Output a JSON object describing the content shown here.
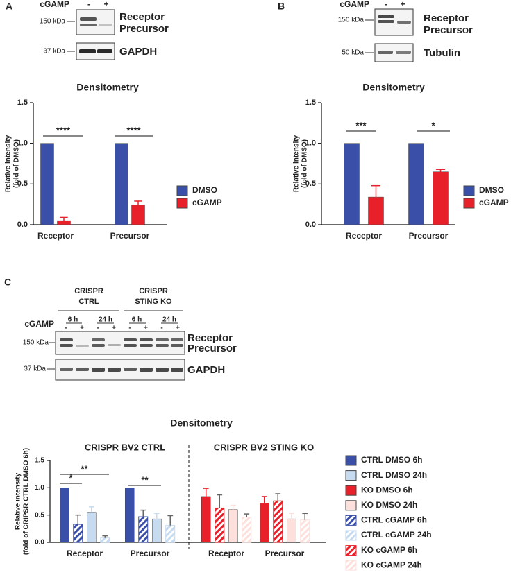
{
  "figure": {
    "panel_labels": [
      "A",
      "B",
      "C"
    ],
    "blots": [
      {
        "treatment": "cGAMP",
        "lanes": [
          "-",
          "+"
        ],
        "markers": [
          "150 kDa",
          "37 kDa"
        ],
        "bands": [
          "Receptor",
          "Precursor"
        ],
        "loading_control": "GAPDH"
      },
      {
        "treatment": "cGAMP",
        "lanes": [
          "-",
          "+"
        ],
        "markers": [
          "150 kDa",
          "50 kDa"
        ],
        "bands": [
          "Receptor",
          "Precursor"
        ],
        "loading_control": "Tubulin"
      },
      {
        "groups": [
          [
            "CRISPR",
            "CTRL"
          ],
          [
            "CRISPR",
            "STING KO"
          ]
        ],
        "times": [
          "6 h",
          "24 h",
          "6 h",
          "24 h"
        ],
        "treatment": "cGAMP",
        "lanes": [
          "-",
          "+",
          "-",
          "+",
          "-",
          "+",
          "-",
          "+"
        ],
        "markers": [
          "150 kDa",
          "37 kDa"
        ],
        "bands": [
          "Receptor",
          "Precursor"
        ],
        "loading_control": "GAPDH"
      }
    ]
  },
  "chart_data": [
    {
      "type": "bar",
      "title": "Densitometry",
      "ylabel": [
        "Relative intensity",
        "(fold of DMSO)"
      ],
      "categories": [
        "Receptor",
        "Precursor"
      ],
      "series": [
        {
          "name": "DMSO",
          "color": "#3a4fa8",
          "values": [
            1,
            1
          ]
        },
        {
          "name": "cGAMP",
          "color": "#e8202a",
          "values": [
            0.05,
            0.24
          ],
          "errors": [
            0.04,
            0.05
          ]
        }
      ],
      "ylim": [
        0,
        1.5
      ],
      "yticks": [
        {
          "value": 0,
          "label": "0.0"
        },
        0.5,
        {
          "value": 1,
          "label": "1.0"
        },
        1.5
      ],
      "annotations": [
        "****",
        "****"
      ],
      "legend": "right"
    },
    {
      "type": "bar",
      "title": "Densitometry",
      "ylabel": [
        "Relative intensity",
        "(fold of DMSO)"
      ],
      "categories": [
        "Receptor",
        "Precursor"
      ],
      "series": [
        {
          "name": "DMSO",
          "color": "#3a4fa8",
          "values": [
            1,
            1
          ]
        },
        {
          "name": "cGAMP",
          "color": "#e8202a",
          "values": [
            0.34,
            0.65
          ],
          "errors": [
            0.14,
            0.03
          ]
        }
      ],
      "ylim": [
        0,
        1.5
      ],
      "yticks": [
        {
          "value": 0,
          "label": "0.0"
        },
        0.5,
        {
          "value": 1,
          "label": "1.0"
        },
        1.5
      ],
      "annotations": [
        "***",
        "*"
      ],
      "legend": "right"
    },
    {
      "type": "bar",
      "title": "Densitometry",
      "subtitles": [
        "CRISPR BV2 CTRL",
        "CRISPR BV2 STING KO"
      ],
      "ylabel": [
        "Relative intensity",
        "(fold of CRIPSR CTRL DMSO 6h)"
      ],
      "categories": [
        "Receptor",
        "Precursor",
        "Receptor",
        "Precursor"
      ],
      "series": [
        {
          "name": "CTRL DMSO 6h",
          "color": "#3a4fa8",
          "values": [
            1,
            1,
            null,
            null
          ]
        },
        {
          "name": "CTRL DMSO 24h",
          "color": "#c6daf0",
          "values": [
            0.55,
            0.43,
            null,
            null
          ],
          "errors": [
            0.1,
            0.1,
            null,
            null
          ]
        },
        {
          "name": "KO DMSO 6h",
          "color": "#e8202a",
          "values": [
            null,
            null,
            0.84,
            0.72
          ],
          "errors": [
            null,
            null,
            0.15,
            0.12
          ]
        },
        {
          "name": "KO DMSO 24h",
          "color": "#fde0dc",
          "values": [
            null,
            null,
            0.6,
            0.43
          ],
          "errors": [
            null,
            null,
            0.08,
            0.1
          ]
        },
        {
          "name": "CTRL cGAMP 6h",
          "color": "#3a4fa8",
          "hatch": true,
          "values": [
            0.33,
            0.47,
            null,
            null
          ],
          "errors": [
            0.17,
            0.12,
            null,
            null
          ]
        },
        {
          "name": "CTRL cGAMP 24h",
          "color": "#c6daf0",
          "hatch": true,
          "values": [
            0.08,
            0.31,
            null,
            null
          ],
          "errors": [
            0.04,
            0.18,
            null,
            null
          ]
        },
        {
          "name": "KO cGAMP 6h",
          "color": "#e8202a",
          "hatch": true,
          "values": [
            null,
            null,
            0.63,
            0.76
          ],
          "errors": [
            null,
            null,
            0.24,
            0.13
          ]
        },
        {
          "name": "KO cGAMP 24h",
          "color": "#fde0dc",
          "hatch": true,
          "values": [
            null,
            null,
            0.46,
            0.41
          ],
          "errors": [
            null,
            null,
            0.06,
            0.12
          ]
        }
      ],
      "ylim": [
        0,
        1.5
      ],
      "yticks": [
        {
          "value": 0,
          "label": "0.0"
        },
        0.5,
        {
          "value": 1,
          "label": "1.0"
        },
        1.5
      ],
      "annotations": [
        "*",
        "**",
        "**"
      ],
      "legend": "right"
    }
  ]
}
